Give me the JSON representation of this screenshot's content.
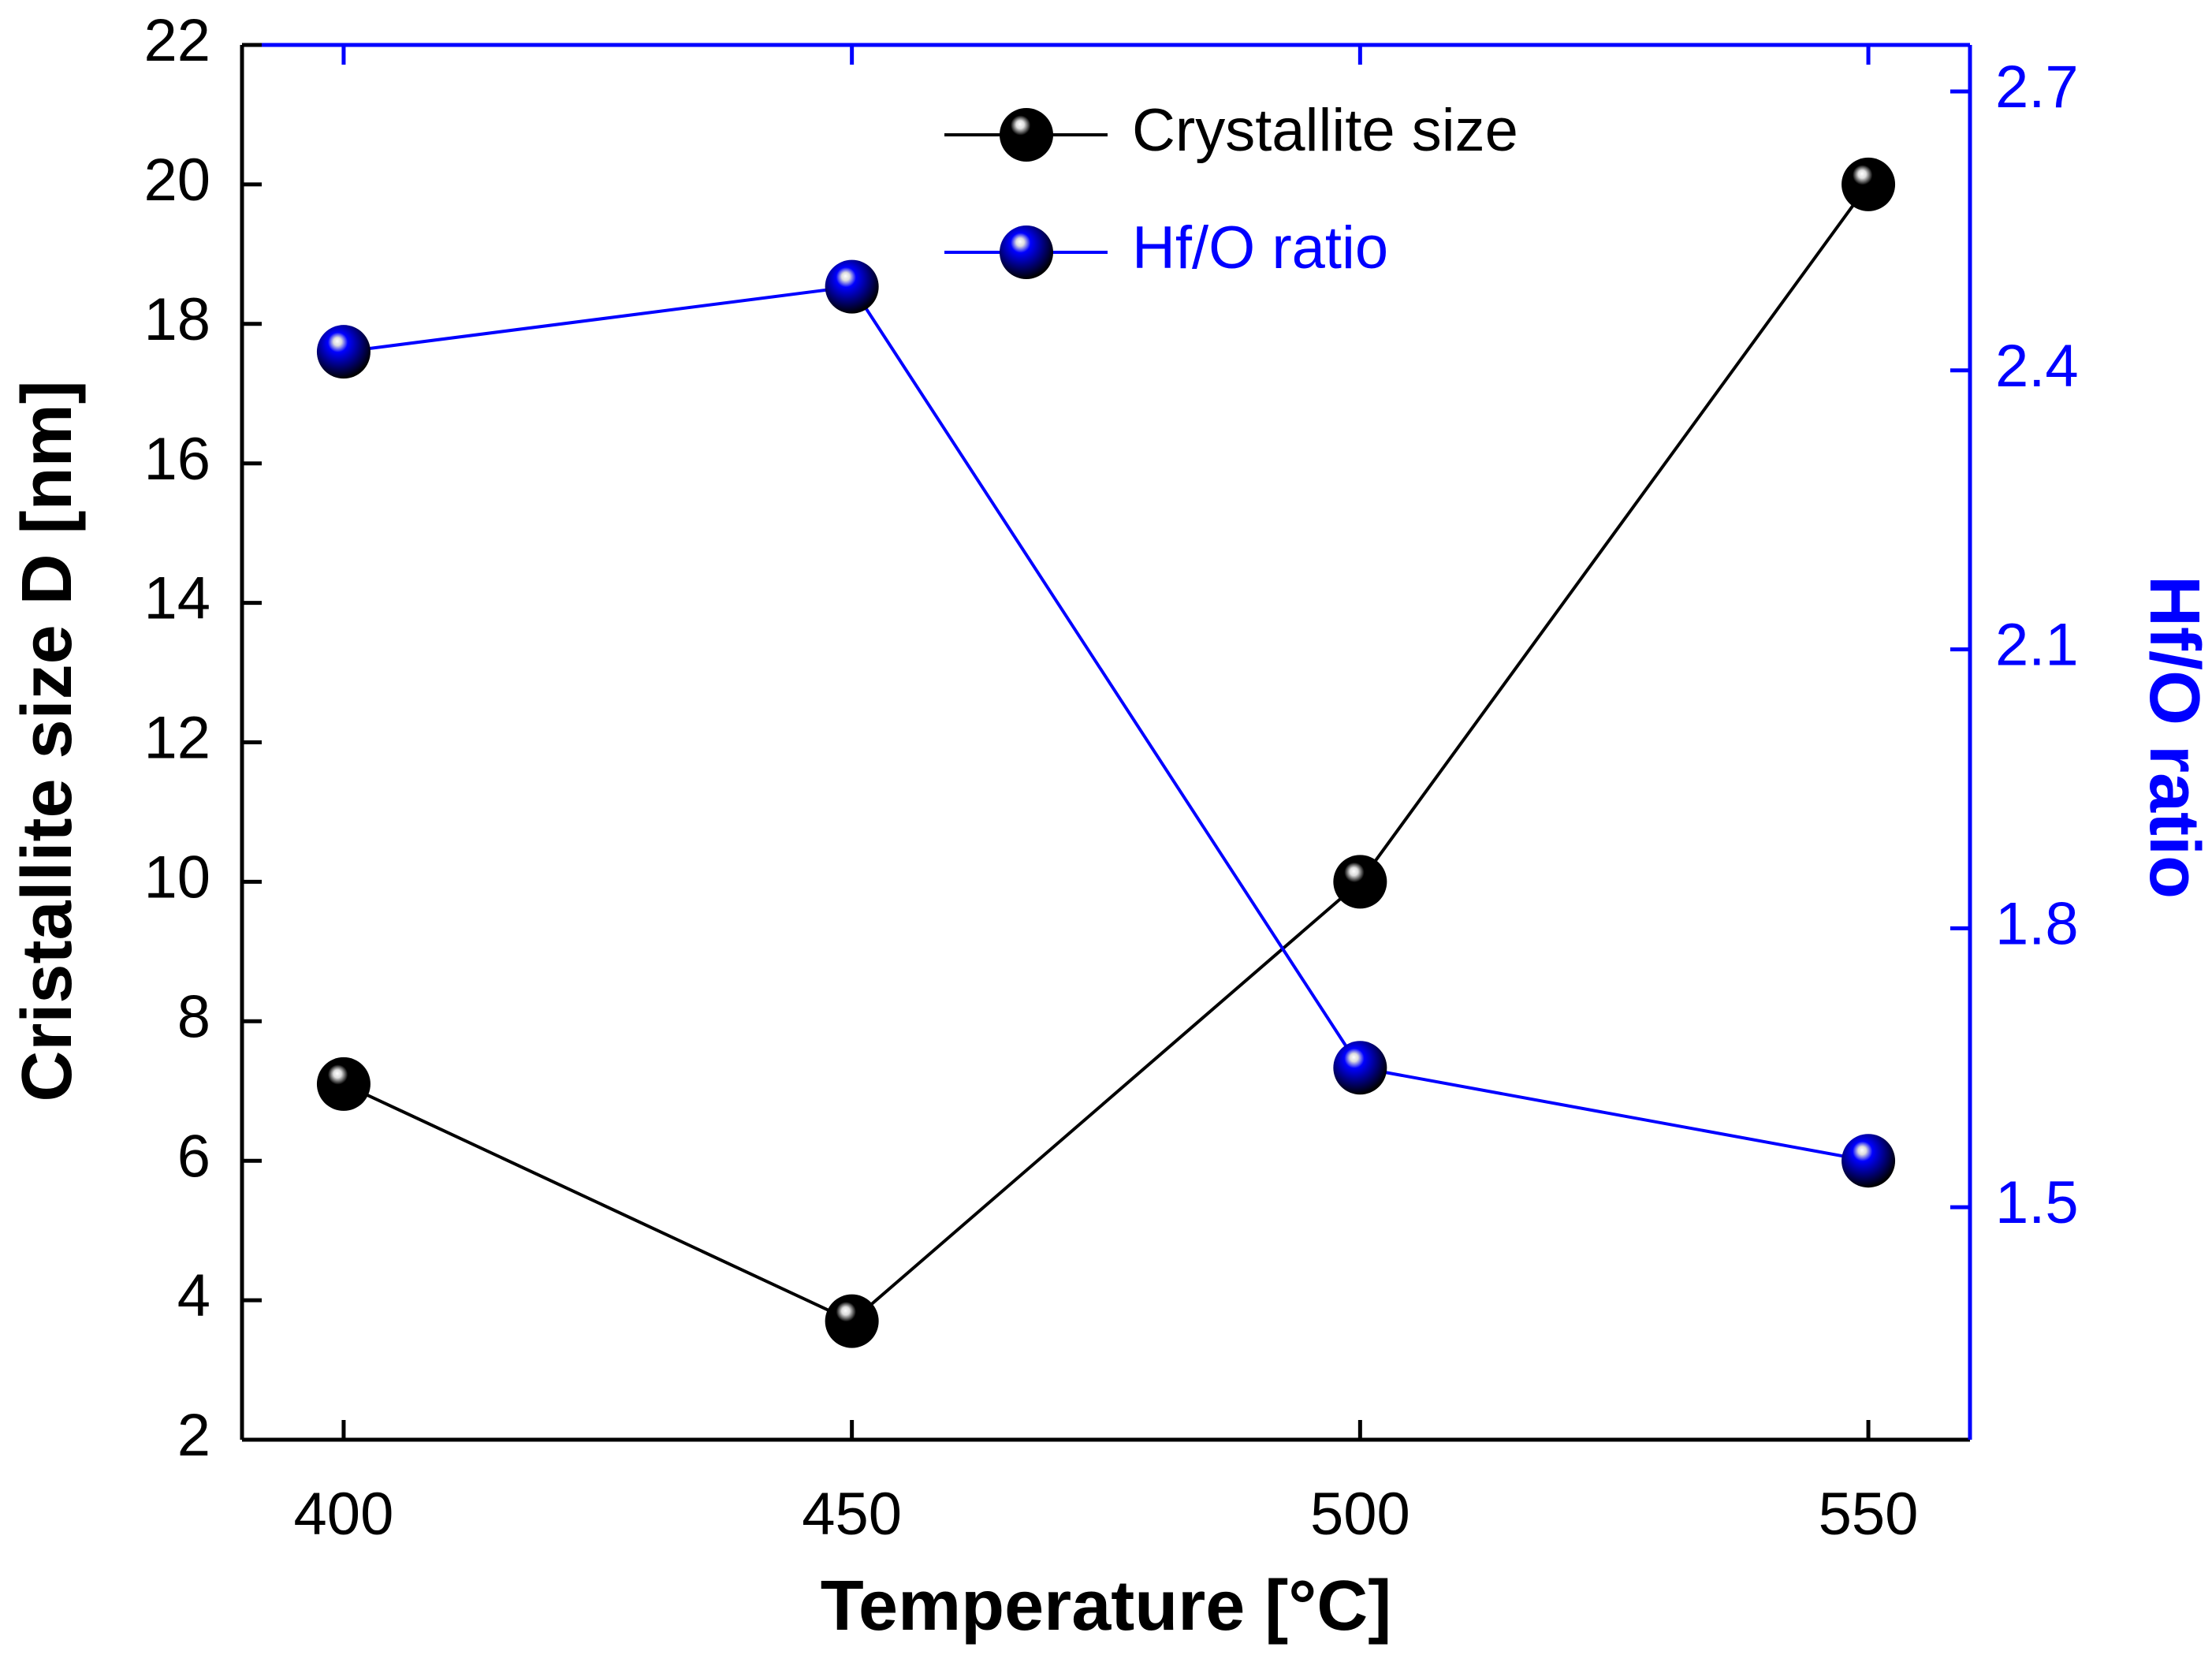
{
  "chart_data": {
    "type": "line",
    "x_label": "Temperature [°C]",
    "y_label": "Cristallite size D [nm]",
    "y2_label": "Hf/O ratio",
    "x": [
      400,
      450,
      500,
      550
    ],
    "series": [
      {
        "name": "Crystallite size",
        "color": "#000000",
        "values": [
          7.1,
          3.7,
          10,
          20
        ]
      },
      {
        "name": "Hf/O ratio",
        "color": "#0000ff",
        "axis": "y2",
        "values": [
          2.42,
          2.49,
          1.65,
          1.55
        ]
      }
    ],
    "xlim": [
      390,
      560
    ],
    "xticks": [
      400,
      450,
      500,
      550
    ],
    "ylim": [
      2,
      22
    ],
    "yticks": [
      2,
      4,
      6,
      8,
      10,
      12,
      14,
      16,
      18,
      20,
      22
    ],
    "y2lim": [
      1.25,
      2.75
    ],
    "y2ticks": [
      1.5,
      1.8,
      2.1,
      2.4,
      2.7
    ],
    "legend": "upper-center",
    "grid": false
  }
}
